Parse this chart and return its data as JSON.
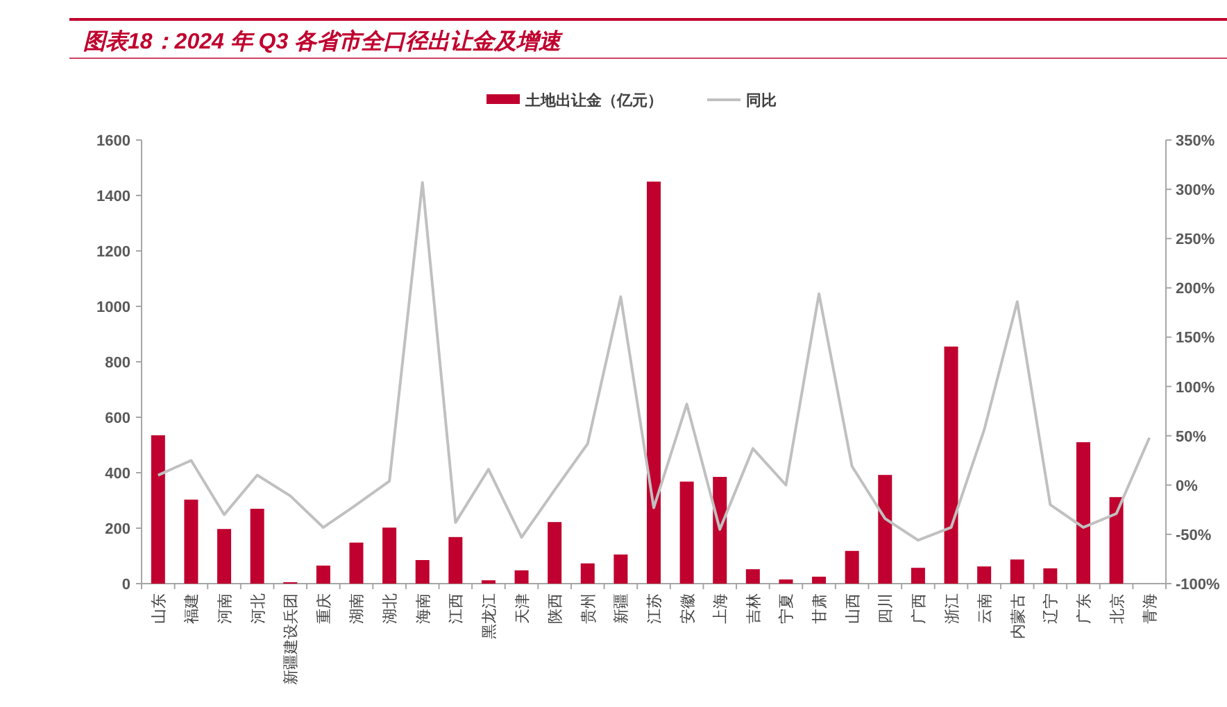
{
  "chart_data": {
    "type": "bar",
    "title": "图表18：2024 年 Q3 各省市全口径出让金及增速",
    "categories": [
      "山东",
      "福建",
      "河南",
      "河北",
      "新疆建设兵团",
      "重庆",
      "湖南",
      "湖北",
      "海南",
      "江西",
      "黑龙江",
      "天津",
      "陕西",
      "贵州",
      "新疆",
      "江苏",
      "安徽",
      "上海",
      "吉林",
      "宁夏",
      "甘肃",
      "山西",
      "四川",
      "广西",
      "浙江",
      "云南",
      "内蒙古",
      "辽宁",
      "广东",
      "北京",
      "青海"
    ],
    "series": [
      {
        "name": "土地出让金（亿元）",
        "color": "#c0002e",
        "values": [
          535,
          303,
          197,
          270,
          5,
          65,
          148,
          202,
          85,
          168,
          12,
          48,
          222,
          73,
          105,
          1450,
          368,
          385,
          52,
          15,
          25,
          118,
          392,
          57,
          855,
          62,
          87,
          55,
          510,
          312,
          0
        ]
      },
      {
        "name": "同比",
        "type": "line",
        "axis": "y2",
        "color": "#c0c0c0",
        "values": [
          10,
          25,
          -30,
          10,
          -11,
          -43,
          -20,
          4,
          307,
          -38,
          16,
          -53,
          -5,
          42,
          191,
          -23,
          82,
          -45,
          37,
          0,
          194,
          19,
          -34,
          -56,
          -43,
          56,
          186,
          -20,
          -43,
          -29,
          48
        ]
      }
    ],
    "ylim": [
      0,
      1600
    ],
    "yticks": [
      0,
      200,
      400,
      600,
      800,
      1000,
      1200,
      1400,
      1600
    ],
    "y2lim": [
      -100,
      350
    ],
    "y2ticks": [
      {
        "value": -100,
        "label": "-100%"
      },
      {
        "value": -50,
        "label": "-50%"
      },
      {
        "value": 0,
        "label": "0%"
      },
      {
        "value": 50,
        "label": "50%"
      },
      {
        "value": 100,
        "label": "100%"
      },
      {
        "value": 150,
        "label": "150%"
      },
      {
        "value": 200,
        "label": "200%"
      },
      {
        "value": 250,
        "label": "250%"
      },
      {
        "value": 300,
        "label": "300%"
      },
      {
        "value": 350,
        "label": "350%"
      }
    ],
    "legend": "top"
  }
}
